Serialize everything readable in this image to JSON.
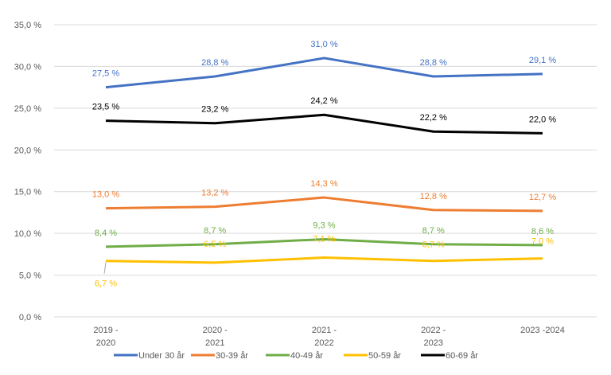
{
  "chart_data": {
    "type": "line",
    "categories": [
      "2019 -\n2020",
      "2020 -\n2021",
      "2021 -\n2022",
      "2022 -\n2023",
      "2023 -2024"
    ],
    "ylim": [
      0,
      35
    ],
    "yticks": [
      "0,0 %",
      "5,0 %",
      "10,0 %",
      "15,0 %",
      "20,0 %",
      "25,0 %",
      "30,0 %",
      "35,0 %"
    ],
    "grid": true,
    "legend": "bottom",
    "series": [
      {
        "name": "Under 30 år",
        "color": "#4472C4",
        "values": [
          27.5,
          28.8,
          31.0,
          28.8,
          29.1
        ],
        "labels": [
          "27,5 %",
          "28,8 %",
          "31,0 %",
          "28,8 %",
          "29,1 %"
        ]
      },
      {
        "name": "30-39 år",
        "color": "#ED7D31",
        "values": [
          13.0,
          13.2,
          14.3,
          12.8,
          12.7
        ],
        "labels": [
          "13,0 %",
          "13,2 %",
          "14,3 %",
          "12,8 %",
          "12,7 %"
        ]
      },
      {
        "name": "40-49 år",
        "color": "#70AD47",
        "values": [
          8.4,
          8.7,
          9.3,
          8.7,
          8.6
        ],
        "labels": [
          "8,4 %",
          "8,7 %",
          "9,3 %",
          "8,7 %",
          "8,6 %"
        ]
      },
      {
        "name": "50-59 år",
        "color": "#FFC000",
        "values": [
          6.7,
          6.5,
          7.1,
          6.7,
          7.0
        ],
        "labels": [
          "6,7 %",
          "6,5 %",
          "7,1 %",
          "6,7 %",
          "7,0 %"
        ]
      },
      {
        "name": "60-69 år",
        "color": "#000000",
        "values": [
          23.5,
          23.2,
          24.2,
          22.2,
          22.0
        ],
        "labels": [
          "23,5 %",
          "23,2 %",
          "24,2 %",
          "22,2 %",
          "22,0 %"
        ]
      }
    ]
  }
}
